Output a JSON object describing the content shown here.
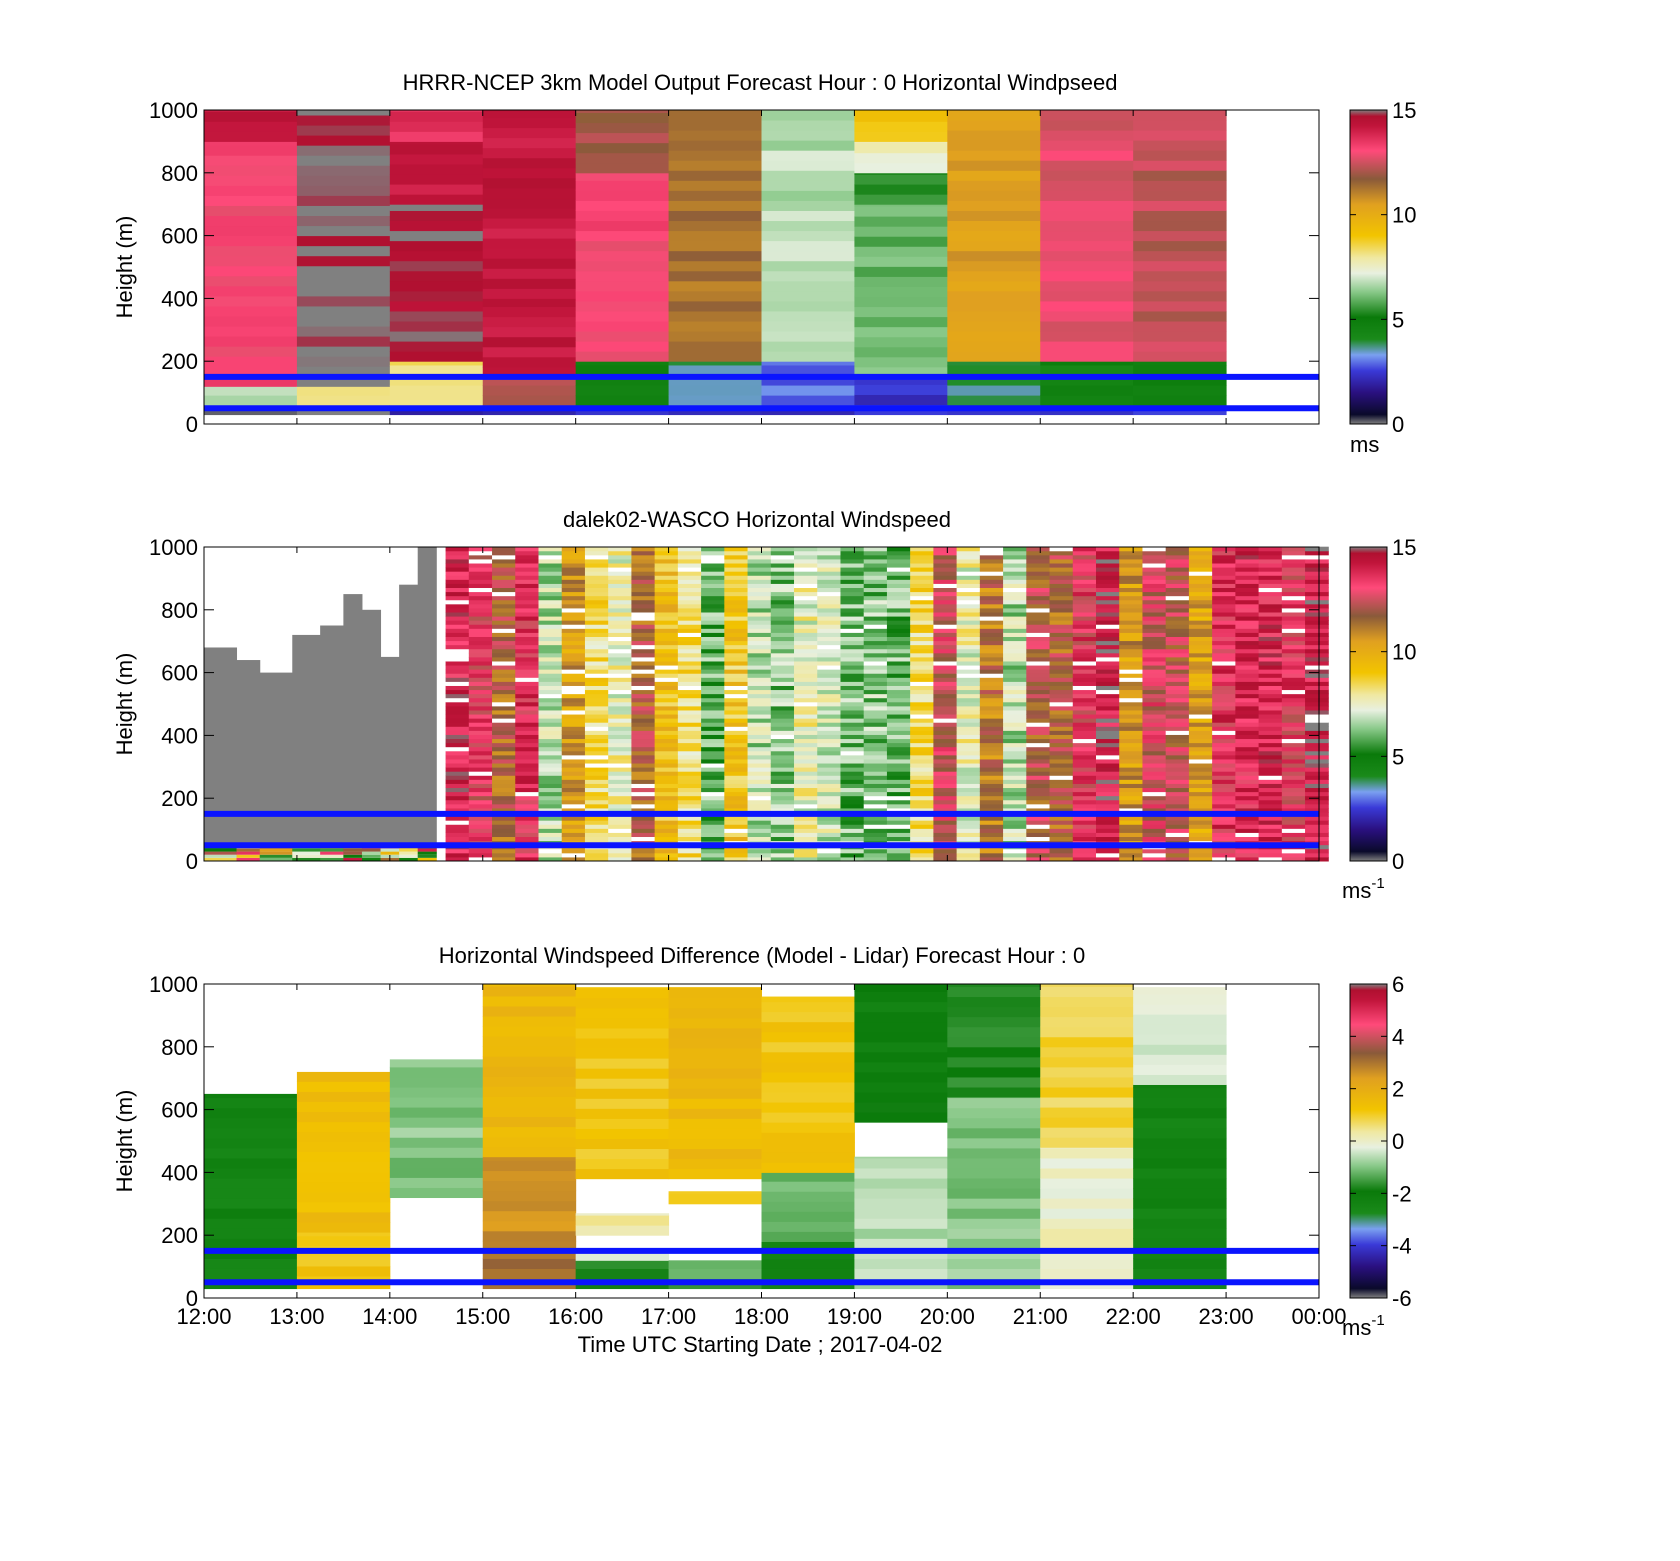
{
  "chart_data": [
    {
      "type": "heatmap",
      "title": "HRRR-NCEP 3km Model Output   Forecast Hour : 0 Horizontal Windpseed",
      "ylabel": "Height (m)",
      "xlabel": "",
      "xlim": [
        0,
        12
      ],
      "ylim": [
        0,
        1000
      ],
      "yticks": [
        "0",
        "200",
        "400",
        "600",
        "800",
        "1000"
      ],
      "xtick_count": 13,
      "colorbar": {
        "min": 0,
        "max": 15,
        "ticks": [
          "0",
          "5",
          "10",
          "15"
        ],
        "unit": "ms",
        "unit_sup": ""
      },
      "reference_lines_m": [
        50,
        150
      ],
      "columns": [
        {
          "hour": 0,
          "cells": [
            [
              30,
              60,
              0.0
            ],
            [
              60,
              120,
              0.45
            ],
            [
              120,
              900,
              0.87
            ],
            [
              900,
              1000,
              0.95
            ]
          ]
        },
        {
          "hour": 1,
          "cells": [
            [
              30,
              60,
              0.0
            ],
            [
              60,
              120,
              0.55
            ],
            [
              120,
              1000,
              1.0
            ]
          ]
        },
        {
          "hour": 2,
          "cells": [
            [
              30,
              60,
              0.15
            ],
            [
              60,
              200,
              0.55
            ],
            [
              200,
              700,
              0.98
            ],
            [
              700,
              900,
              0.95
            ],
            [
              900,
              1000,
              0.9
            ]
          ]
        },
        {
          "hour": 3,
          "cells": [
            [
              30,
              60,
              0.15
            ],
            [
              60,
              150,
              0.8
            ],
            [
              150,
              400,
              0.95
            ],
            [
              400,
              1000,
              0.95
            ]
          ]
        },
        {
          "hour": 4,
          "cells": [
            [
              30,
              60,
              0.15
            ],
            [
              60,
              200,
              0.3
            ],
            [
              200,
              800,
              0.87
            ],
            [
              800,
              1000,
              0.8
            ]
          ]
        },
        {
          "hour": 5,
          "cells": [
            [
              30,
              60,
              0.15
            ],
            [
              60,
              200,
              0.25
            ],
            [
              200,
              1000,
              0.75
            ]
          ]
        },
        {
          "hour": 6,
          "cells": [
            [
              30,
              60,
              0.15
            ],
            [
              60,
              200,
              0.2
            ],
            [
              200,
              1000,
              0.45
            ]
          ]
        },
        {
          "hour": 7,
          "cells": [
            [
              30,
              150,
              0.15
            ],
            [
              150,
              700,
              0.4
            ],
            [
              700,
              800,
              0.35
            ],
            [
              800,
              900,
              0.5
            ],
            [
              900,
              1000,
              0.6
            ]
          ]
        },
        {
          "hour": 8,
          "cells": [
            [
              30,
              60,
              0.15
            ],
            [
              60,
              200,
              0.25
            ],
            [
              200,
              1000,
              0.7
            ]
          ]
        },
        {
          "hour": 9,
          "cells": [
            [
              30,
              60,
              0.15
            ],
            [
              60,
              200,
              0.3
            ],
            [
              200,
              1000,
              0.85
            ]
          ]
        },
        {
          "hour": 10,
          "cells": [
            [
              30,
              60,
              0.15
            ],
            [
              60,
              200,
              0.3
            ],
            [
              200,
              1000,
              0.82
            ]
          ]
        }
      ]
    },
    {
      "type": "heatmap",
      "title": "dalek02-WASCO  Horizontal Windspeed",
      "ylabel": "Height (m)",
      "xlabel": "",
      "xlim": [
        0,
        12
      ],
      "ylim": [
        0,
        1000
      ],
      "yticks": [
        "0",
        "200",
        "400",
        "600",
        "800",
        "1000"
      ],
      "xtick_count": 13,
      "colorbar": {
        "min": 0,
        "max": 15,
        "ticks": [
          "0",
          "5",
          "10",
          "15"
        ],
        "unit": "ms",
        "unit_sup": "-1"
      },
      "reference_lines_m": [
        50,
        150
      ],
      "gray_region_tops_m": [
        {
          "x0": 0,
          "x1": 0.35,
          "top": 680
        },
        {
          "x0": 0.35,
          "x1": 0.6,
          "top": 640
        },
        {
          "x0": 0.6,
          "x1": 0.95,
          "top": 600
        },
        {
          "x0": 0.95,
          "x1": 1.25,
          "top": 720
        },
        {
          "x0": 1.25,
          "x1": 1.5,
          "top": 750
        },
        {
          "x0": 1.5,
          "x1": 1.7,
          "top": 850
        },
        {
          "x0": 1.7,
          "x1": 1.9,
          "top": 800
        },
        {
          "x0": 1.9,
          "x1": 2.1,
          "top": 650
        },
        {
          "x0": 2.1,
          "x1": 2.3,
          "top": 880
        },
        {
          "x0": 2.3,
          "x1": 2.5,
          "top": 1000
        }
      ],
      "column_hours_start": 2.6,
      "column_width_h": 0.25,
      "column_levels": [
        0.93,
        0.87,
        0.78,
        0.9,
        0.45,
        0.7,
        0.55,
        0.5,
        0.78,
        0.62,
        0.55,
        0.4,
        0.6,
        0.45,
        0.42,
        0.5,
        0.47,
        0.41,
        0.42,
        0.4,
        0.55,
        0.84,
        0.5,
        0.75,
        0.45,
        0.8,
        0.78,
        0.88,
        0.95,
        0.7,
        0.85,
        0.82,
        0.68,
        0.9,
        0.92,
        0.92,
        0.88,
        0.95
      ]
    },
    {
      "type": "heatmap",
      "title": "Horizontal Windspeed Difference (Model - Lidar) Forecast Hour : 0",
      "ylabel": "Height (m)",
      "xlabel": "Time UTC  Starting Date ; 2017-04-02",
      "xlim": [
        0,
        12
      ],
      "ylim": [
        0,
        1000
      ],
      "yticks": [
        "0",
        "200",
        "400",
        "600",
        "800",
        "1000"
      ],
      "xticks": [
        "12:00",
        "13:00",
        "14:00",
        "15:00",
        "16:00",
        "17:00",
        "18:00",
        "19:00",
        "20:00",
        "21:00",
        "22:00",
        "23:00",
        "00:00"
      ],
      "colorbar": {
        "min": -6,
        "max": 6,
        "ticks": [
          "-6",
          "-4",
          "-2",
          "0",
          "2",
          "4",
          "6"
        ],
        "unit": "ms",
        "unit_sup": "-1"
      },
      "reference_lines_m": [
        50,
        150
      ],
      "columns": [
        {
          "hour": 0,
          "cells": [
            [
              30,
              650,
              0.3
            ]
          ]
        },
        {
          "hour": 1,
          "cells": [
            [
              30,
              70,
              0.6
            ],
            [
              70,
              210,
              0.6
            ],
            [
              210,
              720,
              0.62
            ]
          ]
        },
        {
          "hour": 2,
          "cells": [
            [
              320,
              760,
              0.42
            ]
          ]
        },
        {
          "hour": 3,
          "cells": [
            [
              30,
              150,
              0.75
            ],
            [
              150,
              450,
              0.72
            ],
            [
              450,
              1000,
              0.63
            ]
          ]
        },
        {
          "hour": 4,
          "cells": [
            [
              30,
              120,
              0.35
            ],
            [
              120,
              150,
              0.45
            ],
            [
              200,
              270,
              0.52
            ],
            [
              380,
              990,
              0.6
            ]
          ]
        },
        {
          "hour": 5,
          "cells": [
            [
              30,
              120,
              0.38
            ],
            [
              300,
              340,
              0.6
            ],
            [
              380,
              990,
              0.63
            ]
          ]
        },
        {
          "hour": 6,
          "cells": [
            [
              30,
              180,
              0.3
            ],
            [
              180,
              400,
              0.4
            ],
            [
              400,
              960,
              0.6
            ]
          ]
        },
        {
          "hour": 7,
          "cells": [
            [
              30,
              450,
              0.45
            ],
            [
              560,
              1000,
              0.32
            ]
          ]
        },
        {
          "hour": 8,
          "cells": [
            [
              30,
              640,
              0.42
            ],
            [
              640,
              1000,
              0.35
            ]
          ]
        },
        {
          "hour": 9,
          "cells": [
            [
              30,
              480,
              0.5
            ],
            [
              480,
              1000,
              0.57
            ]
          ]
        },
        {
          "hour": 10,
          "cells": [
            [
              30,
              680,
              0.3
            ],
            [
              680,
              990,
              0.48
            ]
          ]
        }
      ]
    }
  ]
}
